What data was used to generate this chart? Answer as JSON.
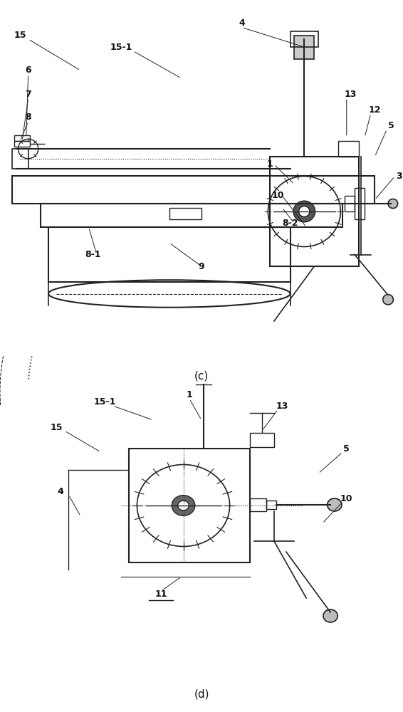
{
  "fig_width": 5.66,
  "fig_height": 10.0,
  "bg_color": "#ffffff",
  "line_color": "#222222"
}
